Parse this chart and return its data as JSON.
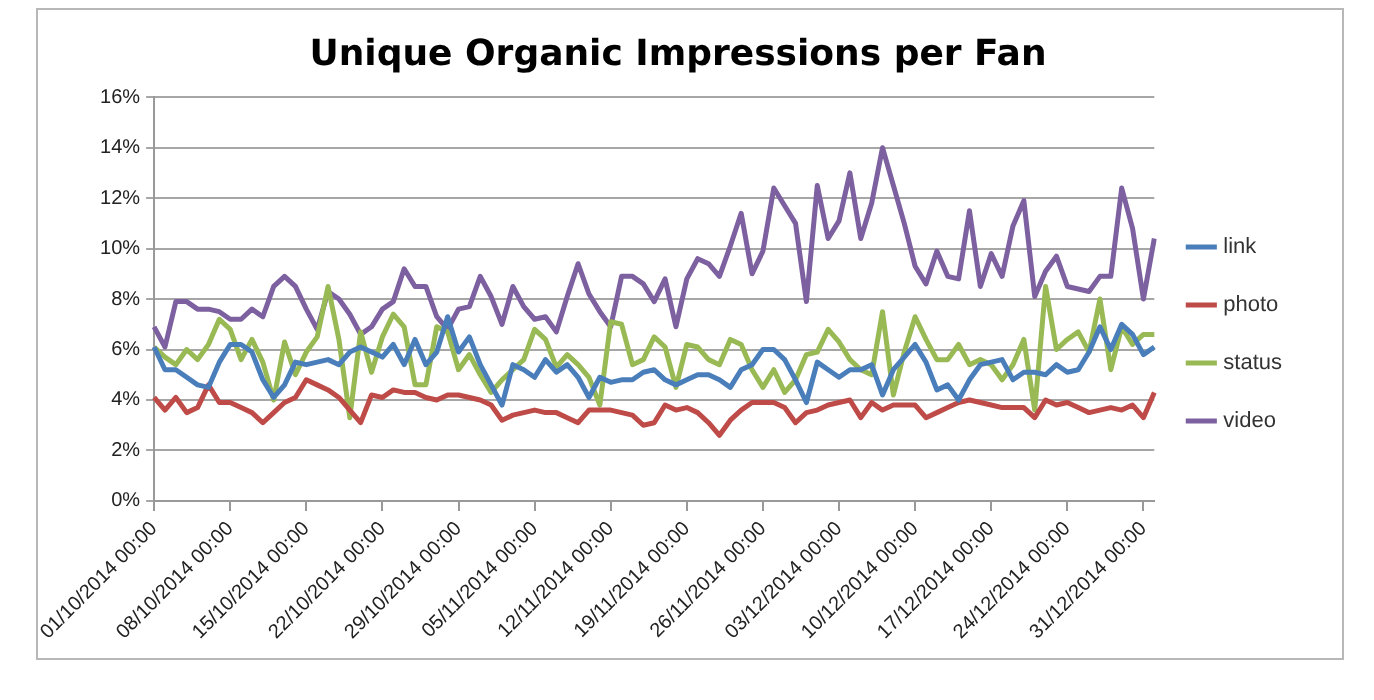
{
  "chart_data": {
    "type": "line",
    "title": "Unique Organic Impressions per Fan",
    "categories": [
      "01/10/2014 00:00",
      null,
      null,
      null,
      null,
      null,
      null,
      "08/10/2014 00:00",
      null,
      null,
      null,
      null,
      null,
      null,
      "15/10/2014 00:00",
      null,
      null,
      null,
      null,
      null,
      null,
      "22/10/2014 00:00",
      null,
      null,
      null,
      null,
      null,
      null,
      "29/10/2014 00:00",
      null,
      null,
      null,
      null,
      null,
      null,
      "05/11/2014 00:00",
      null,
      null,
      null,
      null,
      null,
      null,
      "12/11/2014 00:00",
      null,
      null,
      null,
      null,
      null,
      null,
      "19/11/2014 00:00",
      null,
      null,
      null,
      null,
      null,
      null,
      "26/11/2014 00:00",
      null,
      null,
      null,
      null,
      null,
      null,
      "03/12/2014 00:00",
      null,
      null,
      null,
      null,
      null,
      null,
      "10/12/2014 00:00",
      null,
      null,
      null,
      null,
      null,
      null,
      "17/12/2014 00:00",
      null,
      null,
      null,
      null,
      null,
      null,
      "24/12/2014 00:00",
      null,
      null,
      null,
      null,
      null,
      null,
      "31/12/2014 00:00",
      null
    ],
    "series": [
      {
        "name": "link",
        "color": "#4a7ebb",
        "values": [
          6.1,
          5.2,
          5.2,
          4.9,
          4.6,
          4.5,
          5.5,
          6.2,
          6.2,
          5.9,
          4.8,
          4.1,
          4.6,
          5.5,
          5.4,
          5.5,
          5.6,
          5.4,
          5.9,
          6.1,
          5.9,
          5.7,
          6.2,
          5.4,
          6.4,
          5.4,
          5.9,
          7.3,
          5.9,
          6.5,
          5.4,
          4.6,
          3.8,
          5.4,
          5.2,
          4.9,
          5.6,
          5.1,
          5.4,
          4.9,
          4.1,
          4.9,
          4.7,
          4.8,
          4.8,
          5.1,
          5.2,
          4.8,
          4.6,
          4.8,
          5.0,
          5.0,
          4.8,
          4.5,
          5.2,
          5.4,
          6.0,
          6.0,
          5.6,
          4.8,
          3.9,
          5.5,
          5.2,
          4.9,
          5.2,
          5.2,
          5.4,
          4.2,
          5.2,
          5.7,
          6.2,
          5.5,
          4.4,
          4.6,
          4.0,
          4.8,
          5.4,
          5.5,
          5.6,
          4.8,
          5.1,
          5.1,
          5.0,
          5.4,
          5.1,
          5.2,
          5.9,
          6.9,
          6.0,
          7.0,
          6.6,
          5.8,
          6.1
        ]
      },
      {
        "name": "photo",
        "color": "#be4b48",
        "values": [
          4.1,
          3.6,
          4.1,
          3.5,
          3.7,
          4.6,
          3.9,
          3.9,
          3.7,
          3.5,
          3.1,
          3.5,
          3.9,
          4.1,
          4.8,
          4.6,
          4.4,
          4.1,
          3.6,
          3.1,
          4.2,
          4.1,
          4.4,
          4.3,
          4.3,
          4.1,
          4.0,
          4.2,
          4.2,
          4.1,
          4.0,
          3.8,
          3.2,
          3.4,
          3.5,
          3.6,
          3.5,
          3.5,
          3.3,
          3.1,
          3.6,
          3.6,
          3.6,
          3.5,
          3.4,
          3.0,
          3.1,
          3.8,
          3.6,
          3.7,
          3.5,
          3.1,
          2.6,
          3.2,
          3.6,
          3.9,
          3.9,
          3.9,
          3.7,
          3.1,
          3.5,
          3.6,
          3.8,
          3.9,
          4.0,
          3.3,
          3.9,
          3.6,
          3.8,
          3.8,
          3.8,
          3.3,
          3.5,
          3.7,
          3.9,
          4.0,
          3.9,
          3.8,
          3.7,
          3.7,
          3.7,
          3.3,
          4.0,
          3.8,
          3.9,
          3.7,
          3.5,
          3.6,
          3.7,
          3.6,
          3.8,
          3.3,
          4.3
        ]
      },
      {
        "name": "status",
        "color": "#98b954",
        "values": [
          6.1,
          5.7,
          5.4,
          6.0,
          5.6,
          6.2,
          7.2,
          6.8,
          5.6,
          6.4,
          5.5,
          4.0,
          6.3,
          5.0,
          5.9,
          6.5,
          8.5,
          6.4,
          3.3,
          6.7,
          5.1,
          6.5,
          7.4,
          6.9,
          4.6,
          4.6,
          6.9,
          6.7,
          5.2,
          5.8,
          5.0,
          4.3,
          4.8,
          5.2,
          5.6,
          6.8,
          6.4,
          5.3,
          5.8,
          5.4,
          4.9,
          3.8,
          7.1,
          7.0,
          5.4,
          5.6,
          6.5,
          6.1,
          4.5,
          6.2,
          6.1,
          5.6,
          5.4,
          6.4,
          6.2,
          5.2,
          4.5,
          5.2,
          4.3,
          4.8,
          5.8,
          5.9,
          6.8,
          6.3,
          5.6,
          5.2,
          5.0,
          7.5,
          4.2,
          5.9,
          7.3,
          6.4,
          5.6,
          5.6,
          6.2,
          5.4,
          5.6,
          5.4,
          4.8,
          5.4,
          6.4,
          3.6,
          8.5,
          6.0,
          6.4,
          6.7,
          5.9,
          8.0,
          5.2,
          6.9,
          6.2,
          6.6,
          6.6
        ]
      },
      {
        "name": "video",
        "color": "#7d60a0",
        "values": [
          6.9,
          6.1,
          7.9,
          7.9,
          7.6,
          7.6,
          7.5,
          7.2,
          7.2,
          7.6,
          7.3,
          8.5,
          8.9,
          8.5,
          7.6,
          6.8,
          8.3,
          8.0,
          7.4,
          6.6,
          6.9,
          7.6,
          7.9,
          9.2,
          8.5,
          8.5,
          7.3,
          6.8,
          7.6,
          7.7,
          8.9,
          8.1,
          7.0,
          8.5,
          7.7,
          7.2,
          7.3,
          6.7,
          8.1,
          9.4,
          8.2,
          7.5,
          6.9,
          8.9,
          8.9,
          8.6,
          7.9,
          8.8,
          6.9,
          8.8,
          9.6,
          9.4,
          8.9,
          10.1,
          11.4,
          9.0,
          9.9,
          12.4,
          11.7,
          11.0,
          7.9,
          12.5,
          10.4,
          11.1,
          13.0,
          10.4,
          11.8,
          14.0,
          12.5,
          11.0,
          9.3,
          8.6,
          9.9,
          8.9,
          8.8,
          11.5,
          8.5,
          9.8,
          8.9,
          10.9,
          11.9,
          8.1,
          9.1,
          9.7,
          8.5,
          8.4,
          8.3,
          8.9,
          8.9,
          12.4,
          10.8,
          8.0,
          10.4
        ]
      }
    ],
    "ylim": [
      0,
      16
    ],
    "yticks": [
      {
        "value": 0,
        "label": "0%"
      },
      {
        "value": 2,
        "label": "2%"
      },
      {
        "value": 4,
        "label": "4%"
      },
      {
        "value": 6,
        "label": "6%"
      },
      {
        "value": 8,
        "label": "8%"
      },
      {
        "value": 10,
        "label": "10%"
      },
      {
        "value": 12,
        "label": "12%"
      },
      {
        "value": 14,
        "label": "14%"
      },
      {
        "value": 16,
        "label": "16%"
      }
    ],
    "grid": "y",
    "legend": "right",
    "marker": "none",
    "line_style": "solid"
  }
}
